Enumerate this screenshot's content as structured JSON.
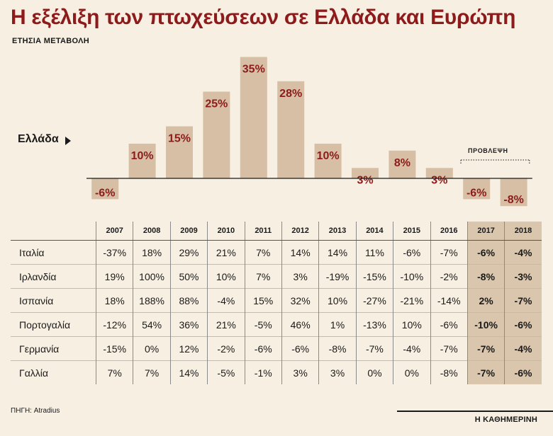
{
  "title": "Η εξέλιξη των πτωχεύσεων σε Ελλάδα και Ευρώπη",
  "subtitle": "ΕΤΗΣΙΑ ΜΕΤΑΒΟΛΗ",
  "chart_data": {
    "type": "bar",
    "series_label": "Ελλάδα",
    "categories": [
      "2007",
      "2008",
      "2009",
      "2010",
      "2011",
      "2012",
      "2013",
      "2014",
      "2015",
      "2016",
      "2017",
      "2018"
    ],
    "values": [
      -6,
      10,
      15,
      25,
      35,
      28,
      10,
      3,
      8,
      3,
      -6,
      -8
    ],
    "value_labels": [
      "-6%",
      "10%",
      "15%",
      "25%",
      "35%",
      "28%",
      "10%",
      "3%",
      "8%",
      "3%",
      "-6%",
      "-8%"
    ],
    "forecast_label": "ΠΡΟΒΛΕΨΗ",
    "forecast_categories": [
      "2017",
      "2018"
    ],
    "colors": {
      "bar": "#d6bfa4",
      "label": "#8e1b1b",
      "background": "#f7efe2",
      "forecast_highlight": "#d9c6ad"
    }
  },
  "table": {
    "columns": [
      "2007",
      "2008",
      "2009",
      "2010",
      "2011",
      "2012",
      "2013",
      "2014",
      "2015",
      "2016",
      "2017",
      "2018"
    ],
    "rows": [
      {
        "country": "Ιταλία",
        "values": [
          "-37%",
          "18%",
          "29%",
          "21%",
          "7%",
          "14%",
          "14%",
          "11%",
          "-6%",
          "-7%",
          "-6%",
          "-4%"
        ]
      },
      {
        "country": "Ιρλανδία",
        "values": [
          "19%",
          "100%",
          "50%",
          "10%",
          "7%",
          "3%",
          "-19%",
          "-15%",
          "-10%",
          "-2%",
          "-8%",
          "-3%"
        ]
      },
      {
        "country": "Ισπανία",
        "values": [
          "18%",
          "188%",
          "88%",
          "-4%",
          "15%",
          "32%",
          "10%",
          "-27%",
          "-21%",
          "-14%",
          "2%",
          "-7%"
        ]
      },
      {
        "country": "Πορτογαλία",
        "values": [
          "-12%",
          "54%",
          "36%",
          "21%",
          "-5%",
          "46%",
          "1%",
          "-13%",
          "10%",
          "-6%",
          "-10%",
          "-6%"
        ]
      },
      {
        "country": "Γερμανία",
        "values": [
          "-15%",
          "0%",
          "12%",
          "-2%",
          "-6%",
          "-6%",
          "-8%",
          "-7%",
          "-4%",
          "-7%",
          "-7%",
          "-4%"
        ]
      },
      {
        "country": "Γαλλία",
        "values": [
          "7%",
          "7%",
          "14%",
          "-5%",
          "-1%",
          "3%",
          "3%",
          "0%",
          "0%",
          "-8%",
          "-7%",
          "-6%"
        ]
      }
    ]
  },
  "source": "ΠΗΓΗ: Atradius",
  "brand": "Η ΚΑΘΗΜΕΡΙΝΗ"
}
